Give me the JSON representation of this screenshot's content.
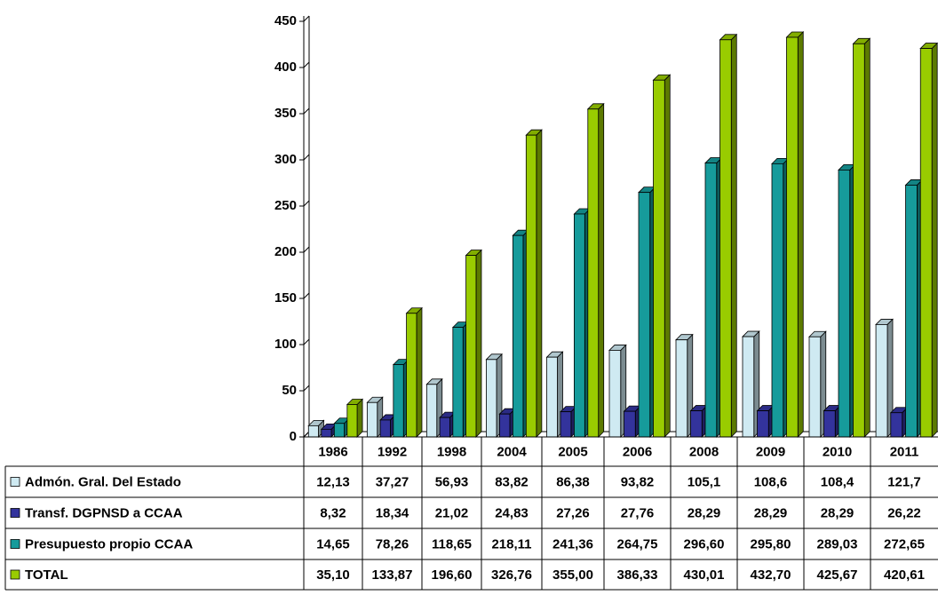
{
  "chart_data": {
    "type": "bar3d",
    "categories": [
      "1986",
      "1992",
      "1998",
      "2004",
      "2005",
      "2006",
      "2008",
      "2009",
      "2010",
      "2011"
    ],
    "series": [
      {
        "name": "Admón. Gral. Del Estado",
        "color": "#cfeaf2",
        "values": [
          12.13,
          37.27,
          56.93,
          83.82,
          86.38,
          93.82,
          105.1,
          108.6,
          108.4,
          121.7
        ],
        "value_labels": [
          "12,13",
          "37,27",
          "56,93",
          "83,82",
          "86,38",
          "93,82",
          "105,1",
          "108,6",
          "108,4",
          "121,7"
        ]
      },
      {
        "name": "Transf. DGPNSD a CCAA",
        "color": "#33339c",
        "values": [
          8.32,
          18.34,
          21.02,
          24.83,
          27.26,
          27.76,
          28.29,
          28.29,
          28.29,
          26.22
        ],
        "value_labels": [
          "8,32",
          "18,34",
          "21,02",
          "24,83",
          "27,26",
          "27,76",
          "28,29",
          "28,29",
          "28,29",
          "26,22"
        ]
      },
      {
        "name": "Presupuesto propio CCAA",
        "color": "#169b9b",
        "values": [
          14.65,
          78.26,
          118.65,
          218.11,
          241.36,
          264.75,
          296.6,
          295.8,
          289.03,
          272.65
        ],
        "value_labels": [
          "14,65",
          "78,26",
          "118,65",
          "218,11",
          "241,36",
          "264,75",
          "296,60",
          "295,80",
          "289,03",
          "272,65"
        ]
      },
      {
        "name": "TOTAL",
        "color": "#99cc00",
        "values": [
          35.1,
          133.87,
          196.6,
          326.76,
          355.0,
          386.33,
          430.01,
          432.7,
          425.67,
          420.61
        ],
        "value_labels": [
          "35,10",
          "133,87",
          "196,60",
          "326,76",
          "355,00",
          "386,33",
          "430,01",
          "432,70",
          "425,67",
          "420,61"
        ]
      }
    ],
    "ylim": [
      0,
      450
    ],
    "yticks": [
      0,
      50,
      100,
      150,
      200,
      250,
      300,
      350,
      400,
      450
    ]
  }
}
